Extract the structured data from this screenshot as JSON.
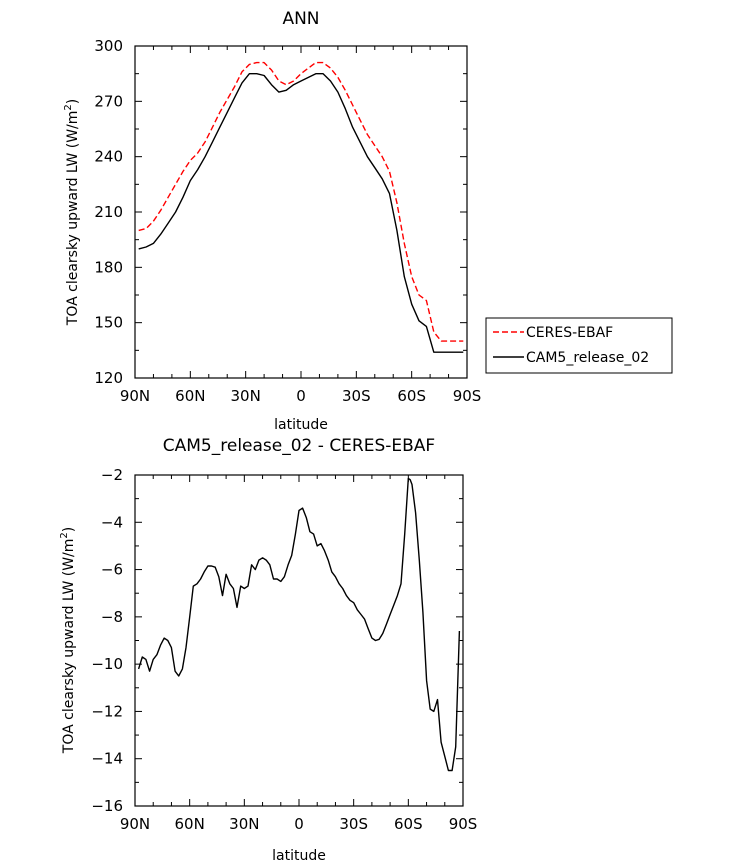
{
  "chart_data": [
    {
      "type": "line",
      "title": "ANN",
      "xlabel": "latitude",
      "ylabel": "TOA clearsky upward LW (W/m",
      "ylabel_sup": "2",
      "ylabel_close": ")",
      "xlim": [
        -90,
        90
      ],
      "ylim": [
        120,
        300
      ],
      "xticks": [
        -90,
        -60,
        -30,
        0,
        30,
        60,
        90
      ],
      "xtick_labels": [
        "90N",
        "60N",
        "30N",
        "0",
        "30S",
        "60S",
        "90S"
      ],
      "yticks": [
        120,
        150,
        180,
        210,
        240,
        270,
        300
      ],
      "ytick_labels": [
        "120",
        "150",
        "180",
        "210",
        "240",
        "270",
        "300"
      ],
      "legend_position": "right",
      "series": [
        {
          "name": "CERES-EBAF",
          "color": "#ff0000",
          "style": "dashed",
          "x": [
            -88,
            -84,
            -80,
            -76,
            -72,
            -68,
            -64,
            -60,
            -56,
            -52,
            -48,
            -44,
            -40,
            -36,
            -32,
            -28,
            -24,
            -20,
            -16,
            -12,
            -8,
            -4,
            0,
            4,
            8,
            12,
            16,
            20,
            24,
            28,
            32,
            36,
            40,
            44,
            48,
            52,
            56,
            60,
            64,
            68,
            72,
            76,
            80,
            84,
            88
          ],
          "y": [
            200,
            201,
            205,
            211,
            218,
            225,
            232,
            238,
            242,
            248,
            256,
            264,
            271,
            278,
            286,
            290,
            291,
            291,
            287,
            281,
            279,
            281,
            285,
            288,
            291,
            291,
            288,
            283,
            276,
            268,
            260,
            252,
            246,
            240,
            232,
            215,
            193,
            175,
            165,
            162,
            145,
            140,
            140,
            140,
            140
          ]
        },
        {
          "name": "CAM5_release_02",
          "color": "#000000",
          "style": "solid",
          "x": [
            -88,
            -84,
            -80,
            -76,
            -72,
            -68,
            -64,
            -60,
            -56,
            -52,
            -48,
            -44,
            -40,
            -36,
            -32,
            -28,
            -24,
            -20,
            -16,
            -12,
            -8,
            -4,
            0,
            4,
            8,
            12,
            16,
            20,
            24,
            28,
            32,
            36,
            40,
            44,
            48,
            52,
            56,
            60,
            64,
            68,
            72,
            76,
            80,
            84,
            88
          ],
          "y": [
            190,
            191,
            193,
            198,
            204,
            210,
            218,
            227,
            233,
            240,
            248,
            256,
            264,
            272,
            280,
            285,
            285,
            284,
            279,
            275,
            276,
            279,
            281,
            283,
            285,
            285,
            281,
            275,
            266,
            256,
            248,
            240,
            234,
            228,
            220,
            200,
            175,
            160,
            151,
            148,
            134,
            134,
            134,
            134,
            134
          ]
        }
      ]
    },
    {
      "type": "line",
      "title": "CAM5_release_02 - CERES-EBAF",
      "xlabel": "latitude",
      "ylabel": "TOA clearsky upward LW (W/m",
      "ylabel_sup": "2",
      "ylabel_close": ")",
      "xlim": [
        -90,
        90
      ],
      "ylim": [
        -16,
        -2
      ],
      "xticks": [
        -90,
        -60,
        -30,
        0,
        30,
        60,
        90
      ],
      "xtick_labels": [
        "90N",
        "60N",
        "30N",
        "0",
        "30S",
        "60S",
        "90S"
      ],
      "yticks": [
        -16,
        -14,
        -12,
        -10,
        -8,
        -6,
        -4,
        -2
      ],
      "ytick_labels": [
        "−16",
        "−14",
        "−12",
        "−10",
        "−8",
        "−6",
        "−4",
        "−2"
      ],
      "series": [
        {
          "name": "CAM5_release_02 - CERES-EBAF",
          "color": "#000000",
          "style": "solid",
          "x": [
            -88,
            -86,
            -84,
            -82,
            -80,
            -78,
            -76,
            -74,
            -72,
            -70,
            -68,
            -66,
            -64,
            -62,
            -60,
            -58,
            -56,
            -54,
            -52,
            -50,
            -48,
            -46,
            -44,
            -42,
            -40,
            -38,
            -36,
            -34,
            -32,
            -30,
            -28,
            -26,
            -24,
            -22,
            -20,
            -18,
            -16,
            -14,
            -12,
            -10,
            -8,
            -6,
            -4,
            -2,
            0,
            2,
            4,
            6,
            8,
            10,
            12,
            14,
            16,
            18,
            20,
            22,
            24,
            26,
            28,
            30,
            32,
            34,
            36,
            38,
            40,
            42,
            44,
            46,
            48,
            50,
            52,
            54,
            56,
            58,
            60,
            61,
            62,
            64,
            66,
            68,
            70,
            72,
            74,
            76,
            78,
            80,
            82,
            84,
            86,
            88
          ],
          "y": [
            -10.2,
            -9.7,
            -9.8,
            -10.3,
            -9.8,
            -9.6,
            -9.2,
            -8.9,
            -9.0,
            -9.3,
            -10.3,
            -10.5,
            -10.2,
            -9.3,
            -8.0,
            -6.7,
            -6.6,
            -6.4,
            -6.1,
            -5.85,
            -5.85,
            -5.9,
            -6.3,
            -7.1,
            -6.2,
            -6.6,
            -6.8,
            -7.6,
            -6.7,
            -6.8,
            -6.7,
            -5.8,
            -6.0,
            -5.6,
            -5.5,
            -5.6,
            -5.8,
            -6.4,
            -6.4,
            -6.5,
            -6.3,
            -5.8,
            -5.4,
            -4.5,
            -3.5,
            -3.4,
            -3.8,
            -4.4,
            -4.5,
            -5.0,
            -4.9,
            -5.2,
            -5.6,
            -6.1,
            -6.3,
            -6.6,
            -6.8,
            -7.1,
            -7.3,
            -7.4,
            -7.7,
            -7.9,
            -8.1,
            -8.5,
            -8.9,
            -9.0,
            -8.95,
            -8.7,
            -8.3,
            -7.9,
            -7.5,
            -7.1,
            -6.6,
            -4.5,
            -2.15,
            -2.2,
            -2.4,
            -3.6,
            -5.6,
            -7.8,
            -10.7,
            -11.9,
            -12.0,
            -11.5,
            -13.3,
            -13.9,
            -14.5,
            -14.5,
            -13.5,
            -8.6
          ]
        }
      ]
    }
  ]
}
